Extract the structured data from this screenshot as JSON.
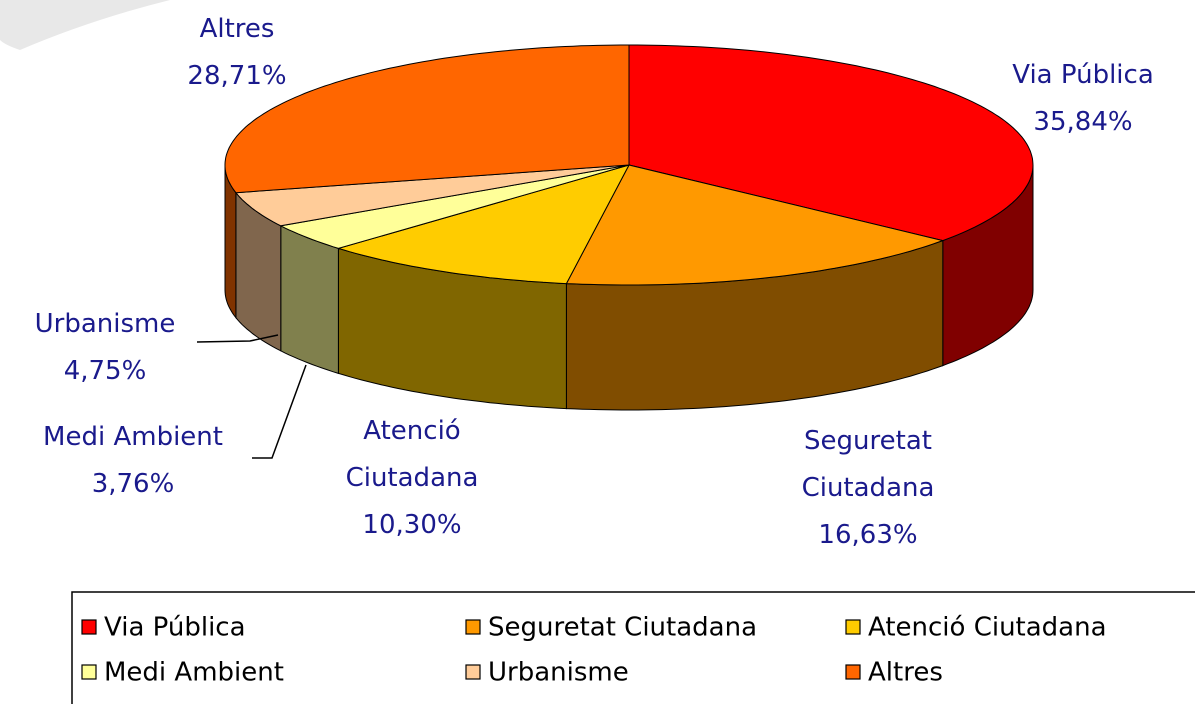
{
  "chart_data": {
    "type": "pie",
    "categories": [
      "Via Pública",
      "Seguretat Ciutadana",
      "Atenció Ciutadana",
      "Medi Ambient",
      "Urbanisme",
      "Altres"
    ],
    "values": [
      35.84,
      16.63,
      10.3,
      3.76,
      4.75,
      28.71
    ],
    "value_labels": [
      "35,84%",
      "16,63%",
      "10,30%",
      "3,76%",
      "4,75%",
      "28,71%"
    ],
    "colors": [
      "#ff0000",
      "#ff9900",
      "#ffcc00",
      "#ffff99",
      "#ffcc99",
      "#ff6600"
    ],
    "legend": "bottom"
  }
}
